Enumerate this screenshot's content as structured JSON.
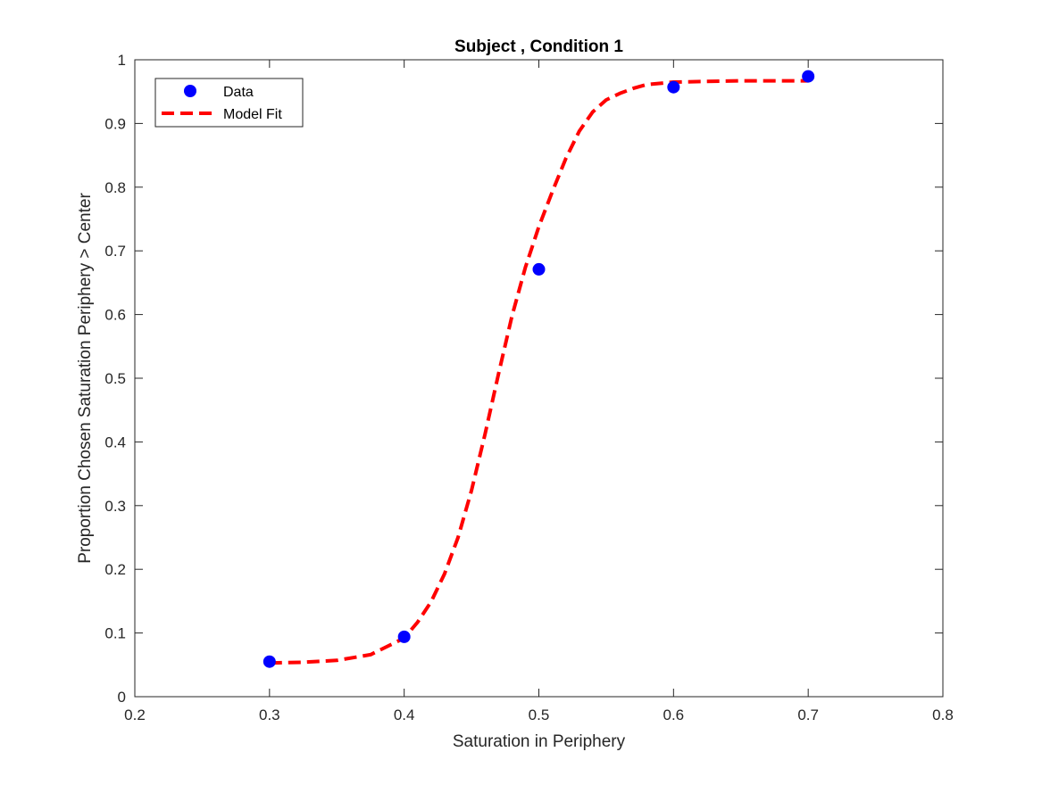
{
  "chart_data": {
    "type": "scatter",
    "title": "Subject , Condition 1",
    "xlabel": "Saturation in Periphery",
    "ylabel": "Proportion Chosen Saturation Periphery > Center",
    "xlim": [
      0.2,
      0.8
    ],
    "ylim": [
      0,
      1
    ],
    "xticks": [
      "0.2",
      "0.3",
      "0.4",
      "0.5",
      "0.6",
      "0.7",
      "0.8"
    ],
    "yticks": [
      "0",
      "0.1",
      "0.2",
      "0.3",
      "0.4",
      "0.5",
      "0.6",
      "0.7",
      "0.8",
      "0.9",
      "1"
    ],
    "grid": false,
    "legend_position": "top-left",
    "series": [
      {
        "name": "Data",
        "kind": "markers",
        "color": "#0000ff",
        "x": [
          0.3,
          0.4,
          0.5,
          0.6,
          0.7
        ],
        "y": [
          0.055,
          0.094,
          0.671,
          0.957,
          0.974
        ]
      },
      {
        "name": "Model Fit",
        "kind": "dashed-line",
        "color": "#ff0000",
        "x": [
          0.3,
          0.325,
          0.35,
          0.375,
          0.4,
          0.41,
          0.42,
          0.43,
          0.44,
          0.45,
          0.46,
          0.47,
          0.48,
          0.49,
          0.5,
          0.51,
          0.52,
          0.53,
          0.54,
          0.55,
          0.56,
          0.57,
          0.58,
          0.6,
          0.65,
          0.7
        ],
        "y": [
          0.053,
          0.054,
          0.057,
          0.066,
          0.092,
          0.117,
          0.149,
          0.193,
          0.25,
          0.324,
          0.412,
          0.506,
          0.597,
          0.674,
          0.738,
          0.793,
          0.845,
          0.888,
          0.918,
          0.937,
          0.947,
          0.955,
          0.961,
          0.965,
          0.967,
          0.967
        ]
      }
    ]
  }
}
